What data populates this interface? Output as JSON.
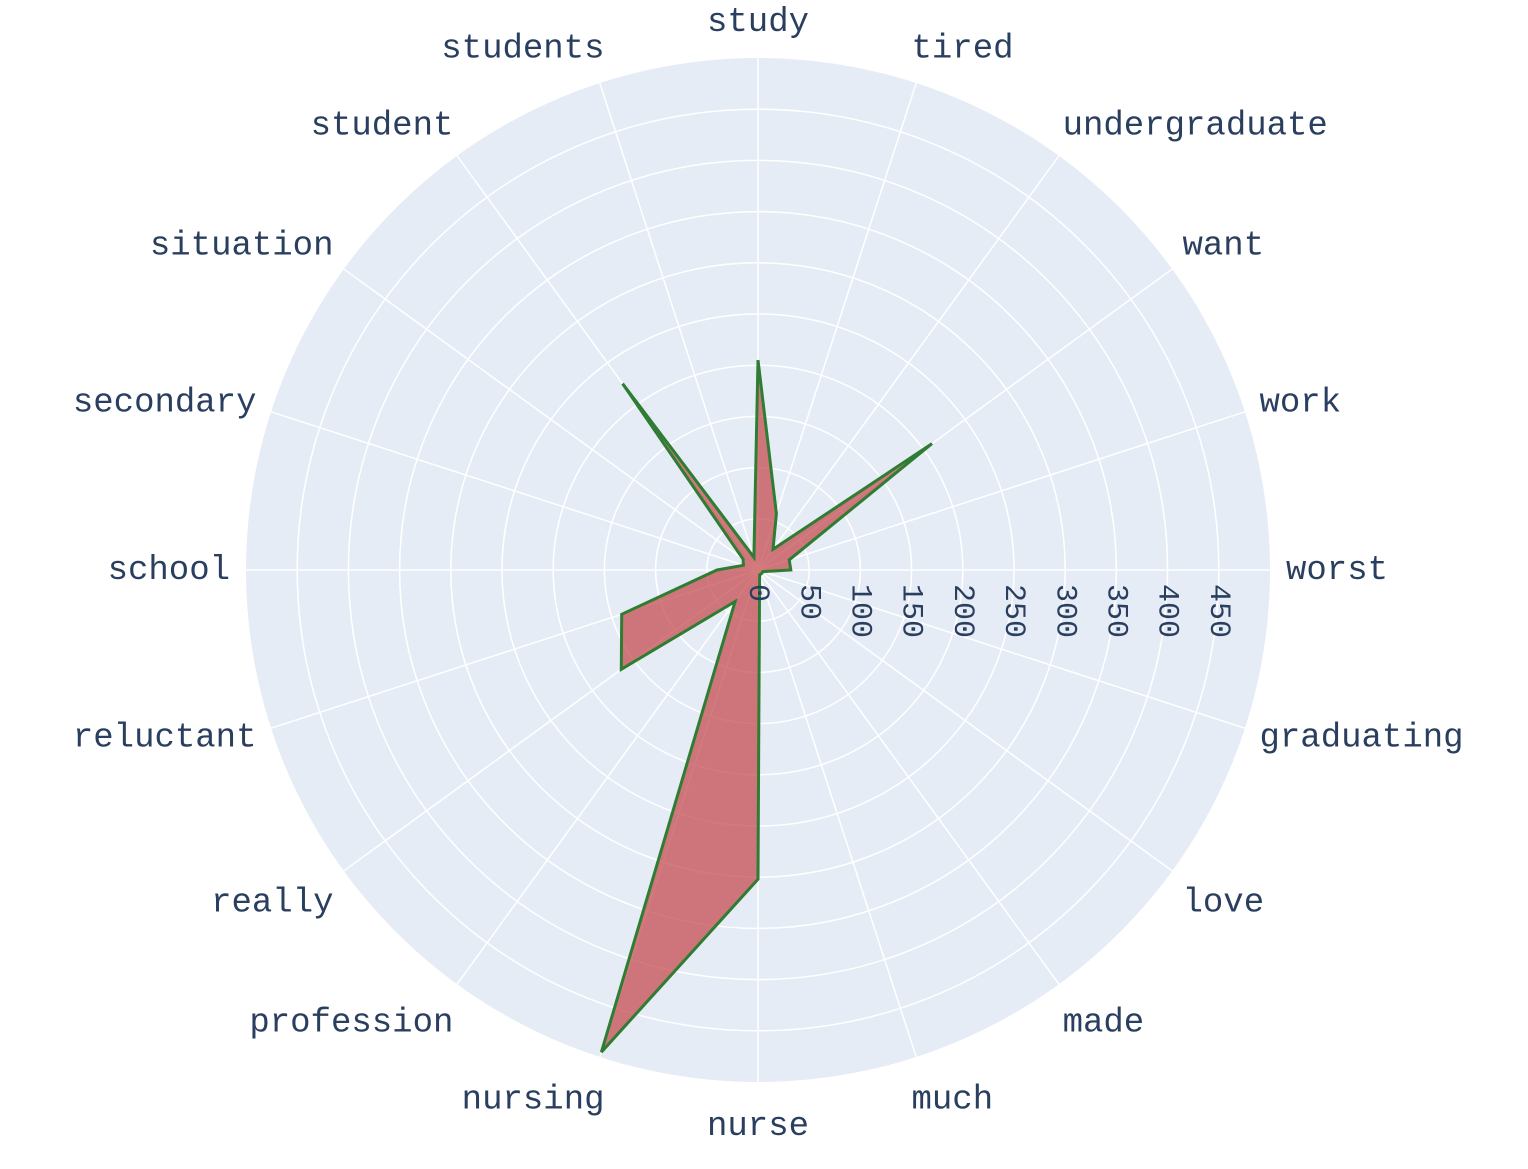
{
  "chart_data": {
    "type": "radar",
    "categories": [
      "worst",
      "work",
      "want",
      "undergraduate",
      "tired",
      "study",
      "students",
      "student",
      "situation",
      "secondary",
      "school",
      "reluctant",
      "really",
      "profession",
      "nursing",
      "nurse",
      "much",
      "made",
      "love",
      "graduating"
    ],
    "values": [
      32,
      32,
      210,
      25,
      58,
      205,
      13,
      225,
      18,
      15,
      40,
      140,
      165,
      38,
      495,
      302,
      5,
      5,
      5,
      5
    ],
    "radial_ticks": [
      "0",
      "50",
      "100",
      "150",
      "200",
      "250",
      "300",
      "350",
      "400",
      "450"
    ],
    "radial_tick_values": [
      0,
      50,
      100,
      150,
      200,
      250,
      300,
      350,
      400,
      450
    ],
    "radial_range": [
      0,
      500
    ],
    "angular_start_deg": 0,
    "direction": "counterclockwise",
    "grid": true,
    "colors": {
      "polar_bg": "#e5ecf6",
      "grid": "#ffffff",
      "fill": "rgba(196,78,82,0.75)",
      "line": "#2e7d32",
      "text": "#2a3f5f"
    }
  }
}
